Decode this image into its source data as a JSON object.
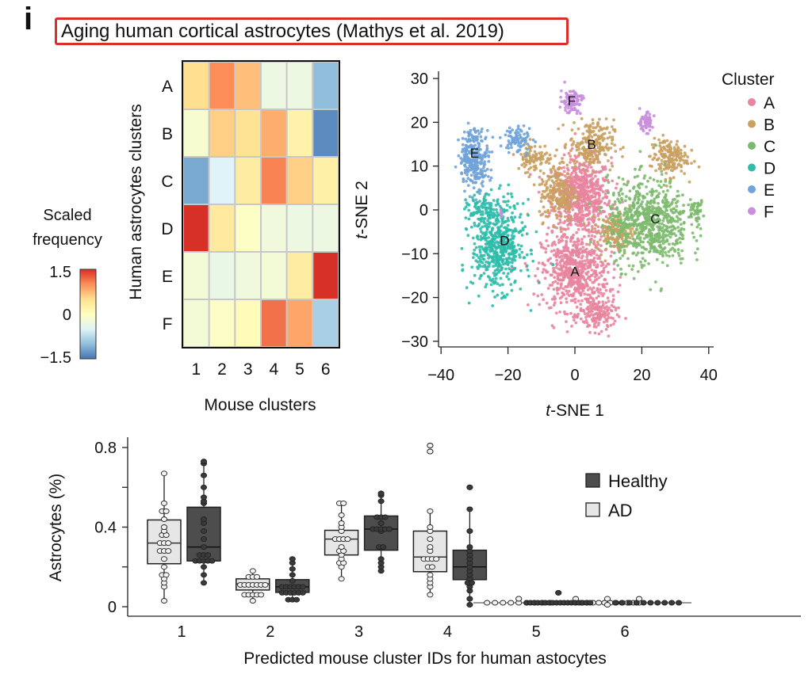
{
  "panel_label": "i",
  "figure_title": "Aging human cortical astrocytes (Mathys et al. 2019)",
  "chart_data": [
    {
      "type": "heatmap",
      "title": "",
      "xlabel": "Mouse clusters",
      "ylabel": "Human astrocytes clusters",
      "x_categories": [
        "1",
        "2",
        "3",
        "4",
        "5",
        "6"
      ],
      "y_categories": [
        "A",
        "B",
        "C",
        "D",
        "E",
        "F"
      ],
      "values": [
        [
          0.5,
          1.0,
          0.7,
          -0.3,
          -0.3,
          -1.0
        ],
        [
          -0.15,
          0.6,
          0.45,
          0.8,
          0.2,
          -1.35
        ],
        [
          -1.15,
          -0.5,
          0.3,
          1.05,
          0.6,
          0.25
        ],
        [
          1.5,
          0.35,
          -0.05,
          -0.25,
          -0.3,
          -0.3
        ],
        [
          -0.2,
          -0.35,
          -0.25,
          -0.2,
          0.3,
          1.5
        ],
        [
          -0.2,
          -0.05,
          0.05,
          1.15,
          0.85,
          -0.85
        ]
      ],
      "colorbar": {
        "title_line1": "Scaled",
        "title_line2": "frequency",
        "min": -1.5,
        "max": 1.5,
        "tick_labels": [
          "1.5",
          "0",
          "−1.5"
        ],
        "colors": [
          "#4575b4",
          "#91bfdb",
          "#e0f3f8",
          "#ffffbf",
          "#fee090",
          "#fc8d59",
          "#d73027"
        ]
      }
    },
    {
      "type": "scatter",
      "title": "",
      "xlabel_italic": "t",
      "xlabel_rest": "-SNE 1",
      "ylabel_italic": "t",
      "ylabel_rest": "-SNE 2",
      "xlim": [
        -40,
        40
      ],
      "ylim": [
        -30,
        30
      ],
      "x_ticks": [
        -40,
        -20,
        0,
        20,
        40
      ],
      "x_tick_labels": [
        "−40",
        "−20",
        "0",
        "20",
        "40"
      ],
      "y_ticks": [
        30,
        20,
        10,
        0,
        -10,
        -20,
        -30
      ],
      "y_tick_labels": [
        "30",
        "20",
        "10",
        "0",
        "−10",
        "−20",
        "−30"
      ],
      "legend_title": "Cluster",
      "legend_position": "right",
      "clusters": [
        {
          "name": "A",
          "color": "#e8859f",
          "label_pos": [
            0,
            -14
          ],
          "regions": [
            [
              2,
              3,
              8,
              8,
              650
            ],
            [
              0,
              -14,
              9,
              8,
              600
            ],
            [
              7,
              -24,
              5,
              3.5,
              150
            ]
          ]
        },
        {
          "name": "B",
          "color": "#c9a060",
          "label_pos": [
            5,
            15
          ],
          "regions": [
            [
              5,
              15,
              6,
              5,
              220
            ],
            [
              -5,
              4,
              5,
              6,
              200
            ],
            [
              -12,
              12,
              5,
              3,
              90
            ],
            [
              12,
              -5,
              5,
              4,
              160
            ],
            [
              28,
              12,
              5,
              4,
              170
            ]
          ]
        },
        {
          "name": "C",
          "color": "#7dba6e",
          "label_pos": [
            24,
            -2
          ],
          "regions": [
            [
              22,
              -3,
              11,
              9,
              700
            ],
            [
              36,
              0,
              2.5,
              2,
              40
            ]
          ]
        },
        {
          "name": "D",
          "color": "#2ebcab",
          "label_pos": [
            -21,
            -7
          ],
          "regions": [
            [
              -23,
              -8,
              7,
              9,
              550
            ],
            [
              -28,
              0,
              4,
              3,
              80
            ]
          ]
        },
        {
          "name": "E",
          "color": "#6fa3d9",
          "label_pos": [
            -30,
            13
          ],
          "regions": [
            [
              -30,
              12,
              4,
              6,
              280
            ],
            [
              -17,
              16,
              4,
              3,
              80
            ]
          ]
        },
        {
          "name": "F",
          "color": "#c98fdc",
          "label_pos": [
            -1,
            25
          ],
          "regions": [
            [
              -1,
              25,
              3,
              2.5,
              90
            ],
            [
              21,
              20,
              2,
              2,
              60
            ],
            [
              -22,
              -1,
              1,
              1,
              8
            ]
          ]
        }
      ]
    },
    {
      "type": "box",
      "title": "",
      "xlabel": "Predicted mouse cluster IDs for human astocytes",
      "ylabel": "Astrocytes (%)",
      "ylim": [
        0,
        0.85
      ],
      "y_ticks": [
        0,
        0.2,
        0.4,
        0.6,
        0.8
      ],
      "y_tick_labels": [
        "0",
        "",
        "0.4",
        "",
        "0.8"
      ],
      "categories": [
        "1",
        "2",
        "3",
        "4",
        "5",
        "6"
      ],
      "legend_position": "top-right",
      "series": [
        {
          "name": "AD",
          "color": "#e6e6e6",
          "point_color": "#f2f2f2",
          "stats": [
            {
              "min": 0.03,
              "q1": 0.216,
              "median": 0.32,
              "q3": 0.436,
              "max": 0.67,
              "outliers": []
            },
            {
              "min": 0.03,
              "q1": 0.084,
              "median": 0.115,
              "q3": 0.14,
              "max": 0.18,
              "outliers": []
            },
            {
              "min": 0.14,
              "q1": 0.26,
              "median": 0.34,
              "q3": 0.384,
              "max": 0.52,
              "outliers": []
            },
            {
              "min": 0.06,
              "q1": 0.176,
              "median": 0.25,
              "q3": 0.38,
              "max": 0.48,
              "outliers": [
                0.78,
                0.81
              ]
            },
            {
              "min": 0.02,
              "q1": 0.02,
              "median": 0.02,
              "q3": 0.02,
              "max": 0.02,
              "outliers": [
                0.04
              ]
            },
            {
              "min": 0.01,
              "q1": 0.02,
              "median": 0.02,
              "q3": 0.02,
              "max": 0.02,
              "outliers": [
                0.04
              ]
            }
          ],
          "points": [
            [
              0.03,
              0.1,
              0.12,
              0.14,
              0.16,
              0.16,
              0.2,
              0.24,
              0.28,
              0.28,
              0.28,
              0.32,
              0.32,
              0.32,
              0.36,
              0.36,
              0.38,
              0.4,
              0.44,
              0.48,
              0.48,
              0.52,
              0.67
            ],
            [
              0.03,
              0.06,
              0.06,
              0.06,
              0.06,
              0.06,
              0.11,
              0.11,
              0.11,
              0.11,
              0.11,
              0.11,
              0.11,
              0.15,
              0.15,
              0.15,
              0.18
            ],
            [
              0.14,
              0.2,
              0.22,
              0.22,
              0.24,
              0.26,
              0.28,
              0.28,
              0.3,
              0.34,
              0.34,
              0.34,
              0.34,
              0.38,
              0.4,
              0.42,
              0.46,
              0.52,
              0.52
            ],
            [
              0.06,
              0.1,
              0.12,
              0.14,
              0.16,
              0.2,
              0.2,
              0.24,
              0.24,
              0.24,
              0.24,
              0.28,
              0.3,
              0.34,
              0.38,
              0.4,
              0.48,
              0.78,
              0.81
            ],
            [
              0.02,
              0.02,
              0.02,
              0.02,
              0.02,
              0.02,
              0.02,
              0.02,
              0.02,
              0.04
            ],
            [
              0.02,
              0.02,
              0.02,
              0.02,
              0.02,
              0.02,
              0.02,
              0.02,
              0.02,
              0.02,
              0.02,
              0.02,
              0.04,
              0.04,
              0.01
            ]
          ]
        },
        {
          "name": "Healthy",
          "color": "#4d4d4d",
          "point_color": "#3a3a3a",
          "stats": [
            {
              "min": 0.12,
              "q1": 0.23,
              "median": 0.3,
              "q3": 0.5,
              "max": 0.73,
              "outliers": []
            },
            {
              "min": 0.035,
              "q1": 0.072,
              "median": 0.1,
              "q3": 0.136,
              "max": 0.24,
              "outliers": []
            },
            {
              "min": 0.18,
              "q1": 0.284,
              "median": 0.39,
              "q3": 0.456,
              "max": 0.57,
              "outliers": []
            },
            {
              "min": 0.01,
              "q1": 0.136,
              "median": 0.2,
              "q3": 0.284,
              "max": 0.49,
              "outliers": [
                0.6
              ]
            },
            {
              "min": 0.02,
              "q1": 0.02,
              "median": 0.02,
              "q3": 0.025,
              "max": 0.025,
              "outliers": [
                0.07
              ]
            },
            {
              "min": 0.02,
              "q1": 0.02,
              "median": 0.02,
              "q3": 0.02,
              "max": 0.02,
              "outliers": []
            }
          ],
          "points": [
            [
              0.12,
              0.16,
              0.2,
              0.23,
              0.23,
              0.23,
              0.23,
              0.23,
              0.26,
              0.26,
              0.26,
              0.3,
              0.34,
              0.38,
              0.42,
              0.44,
              0.52,
              0.53,
              0.55,
              0.6,
              0.66,
              0.72,
              0.73
            ],
            [
              0.035,
              0.035,
              0.035,
              0.07,
              0.07,
              0.07,
              0.07,
              0.07,
              0.07,
              0.1,
              0.1,
              0.1,
              0.1,
              0.1,
              0.1,
              0.13,
              0.16,
              0.19,
              0.22,
              0.24
            ],
            [
              0.18,
              0.2,
              0.22,
              0.24,
              0.3,
              0.3,
              0.38,
              0.39,
              0.39,
              0.39,
              0.39,
              0.39,
              0.42,
              0.45,
              0.45,
              0.45,
              0.53,
              0.56,
              0.57
            ],
            [
              0.01,
              0.04,
              0.08,
              0.1,
              0.12,
              0.12,
              0.14,
              0.16,
              0.18,
              0.2,
              0.22,
              0.24,
              0.26,
              0.28,
              0.3,
              0.38,
              0.49,
              0.6
            ],
            [
              0.02,
              0.02,
              0.02,
              0.02,
              0.02,
              0.02,
              0.02,
              0.02,
              0.02,
              0.02,
              0.02,
              0.02,
              0.02,
              0.02,
              0.02,
              0.02,
              0.02,
              0.02,
              0.07
            ],
            [
              0.02,
              0.02,
              0.02,
              0.02,
              0.02,
              0.02,
              0.02,
              0.02,
              0.02,
              0.02
            ]
          ]
        }
      ]
    }
  ]
}
